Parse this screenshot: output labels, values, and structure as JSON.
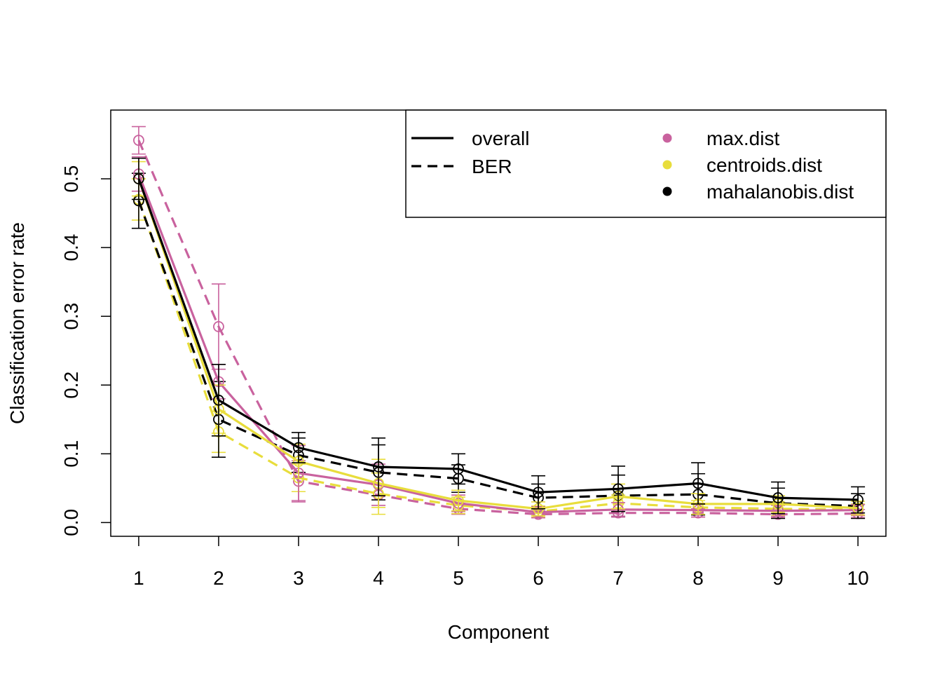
{
  "chart_data": {
    "type": "line",
    "xlabel": "Component",
    "ylabel": "Classification error rate",
    "xlim": [
      0.65,
      10.35
    ],
    "ylim": [
      -0.02,
      0.6
    ],
    "x": [
      1,
      2,
      3,
      4,
      5,
      6,
      7,
      8,
      9,
      10
    ],
    "x_tick_labels": [
      "1",
      "2",
      "3",
      "4",
      "5",
      "6",
      "7",
      "8",
      "9",
      "10"
    ],
    "y_ticks": [
      0.0,
      0.1,
      0.2,
      0.3,
      0.4,
      0.5
    ],
    "y_tick_labels": [
      "0.0",
      "0.1",
      "0.2",
      "0.3",
      "0.4",
      "0.5"
    ],
    "grid": false,
    "legend_placement": "top-right",
    "legend": {
      "linetypes": [
        {
          "label": "overall",
          "dash": "solid"
        },
        {
          "label": "BER",
          "dash": "dashed"
        }
      ],
      "distances": [
        {
          "label": "max.dist",
          "color": "#C9629E"
        },
        {
          "label": "centroids.dist",
          "color": "#E8DD3C"
        },
        {
          "label": "mahalanobis.dist",
          "color": "#000000"
        }
      ]
    },
    "series": [
      {
        "name": "max.dist",
        "measure": "BER",
        "color": "#C9629E",
        "dash": "dashed",
        "values": [
          0.556,
          0.285,
          0.06,
          0.04,
          0.02,
          0.012,
          0.014,
          0.014,
          0.012,
          0.013
        ],
        "sd": [
          0.02,
          0.062,
          0.03,
          0.015,
          0.008,
          0.005,
          0.006,
          0.006,
          0.005,
          0.006
        ]
      },
      {
        "name": "centroids.dist",
        "measure": "BER",
        "color": "#E8DD3C",
        "dash": "dashed",
        "values": [
          0.47,
          0.132,
          0.065,
          0.042,
          0.025,
          0.016,
          0.028,
          0.022,
          0.02,
          0.019
        ],
        "sd": [
          0.03,
          0.03,
          0.02,
          0.03,
          0.012,
          0.008,
          0.012,
          0.01,
          0.01,
          0.008
        ]
      },
      {
        "name": "mahalanobis.dist",
        "measure": "BER",
        "color": "#000000",
        "dash": "dashed",
        "values": [
          0.468,
          0.15,
          0.098,
          0.073,
          0.064,
          0.036,
          0.039,
          0.041,
          0.028,
          0.024
        ],
        "sd": [
          0.04,
          0.055,
          0.025,
          0.04,
          0.02,
          0.02,
          0.03,
          0.03,
          0.022,
          0.018
        ]
      },
      {
        "name": "max.dist",
        "measure": "overall",
        "color": "#C9629E",
        "dash": "solid",
        "values": [
          0.507,
          0.205,
          0.072,
          0.055,
          0.028,
          0.015,
          0.019,
          0.018,
          0.017,
          0.018
        ],
        "sd": [
          0.025,
          0.025,
          0.04,
          0.03,
          0.012,
          0.008,
          0.01,
          0.01,
          0.008,
          0.008
        ]
      },
      {
        "name": "centroids.dist",
        "measure": "overall",
        "color": "#E8DD3C",
        "dash": "solid",
        "values": [
          0.5,
          0.165,
          0.089,
          0.057,
          0.032,
          0.02,
          0.038,
          0.027,
          0.027,
          0.021
        ],
        "sd": [
          0.025,
          0.035,
          0.025,
          0.035,
          0.015,
          0.01,
          0.018,
          0.015,
          0.012,
          0.01
        ]
      },
      {
        "name": "mahalanobis.dist",
        "measure": "overall",
        "color": "#000000",
        "dash": "solid",
        "values": [
          0.5,
          0.178,
          0.109,
          0.081,
          0.078,
          0.044,
          0.049,
          0.057,
          0.036,
          0.033
        ],
        "sd": [
          0.03,
          0.052,
          0.022,
          0.042,
          0.022,
          0.024,
          0.033,
          0.03,
          0.023,
          0.019
        ]
      }
    ]
  }
}
